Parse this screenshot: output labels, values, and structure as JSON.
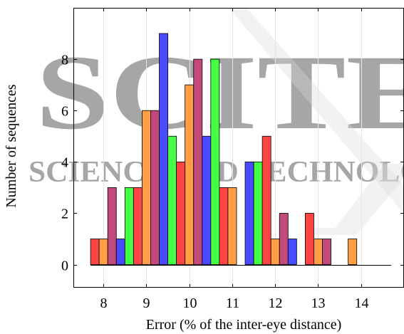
{
  "chart_data": {
    "type": "bar",
    "xlabel": "Error (% of the inter-eye distance)",
    "ylabel": "Number of sequences",
    "xlim": [
      7.3,
      15.0
    ],
    "ylim": [
      -0.9,
      10.0
    ],
    "xticks": [
      {
        "value": 8,
        "label": "8"
      },
      {
        "value": 9,
        "label": "9"
      },
      {
        "value": 10,
        "label": "10"
      },
      {
        "value": 11,
        "label": "11"
      },
      {
        "value": 12,
        "label": "12"
      },
      {
        "value": 13,
        "label": "13"
      },
      {
        "value": 14,
        "label": "14"
      }
    ],
    "yticks": [
      {
        "value": 0,
        "label": "0"
      },
      {
        "value": 2,
        "label": "2"
      },
      {
        "value": 4,
        "label": "4"
      },
      {
        "value": 6,
        "label": "6"
      },
      {
        "value": 8,
        "label": "8"
      }
    ],
    "grid": "vertical",
    "bin_width": 0.2,
    "colors": [
      "#ff4444",
      "#ff9e45",
      "#c24a7b",
      "#4a4aff",
      "#44ff44"
    ],
    "bars": [
      {
        "x": 7.8,
        "value": 1,
        "color": 0
      },
      {
        "x": 8.0,
        "value": 1,
        "color": 1
      },
      {
        "x": 8.2,
        "value": 3,
        "color": 2
      },
      {
        "x": 8.4,
        "value": 1,
        "color": 3
      },
      {
        "x": 8.6,
        "value": 3,
        "color": 4
      },
      {
        "x": 8.8,
        "value": 3,
        "color": 0
      },
      {
        "x": 9.0,
        "value": 6,
        "color": 1
      },
      {
        "x": 9.2,
        "value": 6,
        "color": 2
      },
      {
        "x": 9.4,
        "value": 9,
        "color": 3
      },
      {
        "x": 9.6,
        "value": 5,
        "color": 4
      },
      {
        "x": 9.8,
        "value": 4,
        "color": 0
      },
      {
        "x": 10.0,
        "value": 7,
        "color": 1
      },
      {
        "x": 10.2,
        "value": 8,
        "color": 2
      },
      {
        "x": 10.4,
        "value": 5,
        "color": 3
      },
      {
        "x": 10.6,
        "value": 8,
        "color": 4
      },
      {
        "x": 10.8,
        "value": 3,
        "color": 0
      },
      {
        "x": 11.0,
        "value": 3,
        "color": 1
      },
      {
        "x": 11.4,
        "value": 4,
        "color": 3
      },
      {
        "x": 11.6,
        "value": 4,
        "color": 4
      },
      {
        "x": 11.8,
        "value": 5,
        "color": 0
      },
      {
        "x": 12.0,
        "value": 1,
        "color": 1
      },
      {
        "x": 12.2,
        "value": 2,
        "color": 2
      },
      {
        "x": 12.4,
        "value": 1,
        "color": 3
      },
      {
        "x": 12.8,
        "value": 2,
        "color": 0
      },
      {
        "x": 13.0,
        "value": 1,
        "color": 1
      },
      {
        "x": 13.2,
        "value": 1,
        "color": 2
      },
      {
        "x": 13.8,
        "value": 1,
        "color": 1
      }
    ],
    "baseline_range": [
      7.7,
      14.7
    ]
  },
  "watermark": {
    "line1": "SCITE",
    "line2": "SCIENCE AND TECHNOLOGY"
  }
}
